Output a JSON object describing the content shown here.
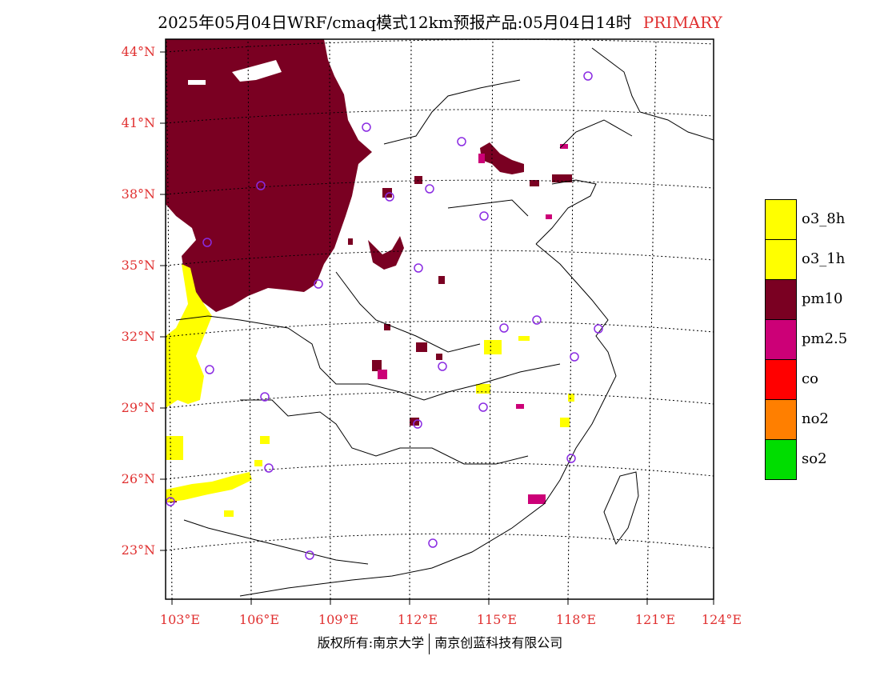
{
  "title": {
    "main": "2025年05月04日WRF/cmaq模式12km预报产品:05月04日14时",
    "tag": "PRIMARY"
  },
  "axes": {
    "lat_labels": [
      "44°N",
      "41°N",
      "38°N",
      "35°N",
      "32°N",
      "29°N",
      "26°N",
      "23°N"
    ],
    "lon_labels": [
      "103°E",
      "106°E",
      "109°E",
      "112°E",
      "115°E",
      "118°E",
      "121°E",
      "124°E"
    ]
  },
  "legend": [
    {
      "label": "o3_8h",
      "color": "#ffff00"
    },
    {
      "label": "o3_1h",
      "color": "#ffff00"
    },
    {
      "label": "pm10",
      "color": "#7a0022"
    },
    {
      "label": "pm2.5",
      "color": "#cc0077"
    },
    {
      "label": "co",
      "color": "#ff0000"
    },
    {
      "label": "no2",
      "color": "#ff7f00"
    },
    {
      "label": "so2",
      "color": "#00dd00"
    }
  ],
  "footer": {
    "left": "版权所有:南京大学",
    "right": "南京创蓝科技有限公司"
  }
}
